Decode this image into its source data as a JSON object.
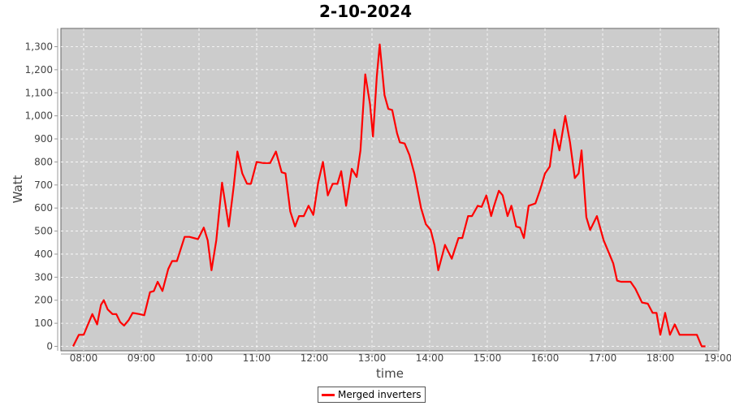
{
  "chart_data": {
    "type": "line",
    "title": "2-10-2024",
    "xlabel": "time",
    "ylabel": "Watt",
    "xlim": [
      "07:45",
      "19:05"
    ],
    "ylim": [
      0,
      1380
    ],
    "x_ticks": [
      "08:00",
      "09:00",
      "10:00",
      "11:00",
      "12:00",
      "13:00",
      "14:00",
      "15:00",
      "16:00",
      "17:00",
      "18:00",
      "19:00"
    ],
    "y_ticks": [
      "0",
      "100",
      "200",
      "300",
      "400",
      "500",
      "600",
      "700",
      "800",
      "900",
      "1,000",
      "1,100",
      "1,200",
      "1,300"
    ],
    "grid": true,
    "legend_position": "bottom",
    "colors": {
      "plot_background": "#cccccc",
      "series": "#ff0000",
      "grid": "#ffffff"
    },
    "series": [
      {
        "name": "Merged inverters",
        "points": [
          [
            "07:49",
            0
          ],
          [
            "07:55",
            50
          ],
          [
            "08:00",
            50
          ],
          [
            "08:04",
            90
          ],
          [
            "08:09",
            140
          ],
          [
            "08:14",
            95
          ],
          [
            "08:18",
            180
          ],
          [
            "08:21",
            200
          ],
          [
            "08:25",
            160
          ],
          [
            "08:30",
            140
          ],
          [
            "08:34",
            140
          ],
          [
            "08:38",
            105
          ],
          [
            "08:42",
            90
          ],
          [
            "08:47",
            115
          ],
          [
            "08:51",
            145
          ],
          [
            "08:58",
            140
          ],
          [
            "09:03",
            135
          ],
          [
            "09:09",
            235
          ],
          [
            "09:13",
            240
          ],
          [
            "09:17",
            280
          ],
          [
            "09:22",
            240
          ],
          [
            "09:28",
            335
          ],
          [
            "09:32",
            370
          ],
          [
            "09:37",
            370
          ],
          [
            "09:45",
            475
          ],
          [
            "09:50",
            475
          ],
          [
            "09:59",
            465
          ],
          [
            "10:05",
            515
          ],
          [
            "10:09",
            460
          ],
          [
            "10:13",
            330
          ],
          [
            "10:18",
            460
          ],
          [
            "10:24",
            710
          ],
          [
            "10:31",
            520
          ],
          [
            "10:36",
            690
          ],
          [
            "10:40",
            845
          ],
          [
            "10:45",
            750
          ],
          [
            "10:50",
            705
          ],
          [
            "10:54",
            705
          ],
          [
            "11:00",
            800
          ],
          [
            "11:07",
            795
          ],
          [
            "11:14",
            795
          ],
          [
            "11:20",
            845
          ],
          [
            "11:26",
            755
          ],
          [
            "11:30",
            750
          ],
          [
            "11:35",
            585
          ],
          [
            "11:40",
            520
          ],
          [
            "11:44",
            565
          ],
          [
            "11:49",
            565
          ],
          [
            "11:54",
            610
          ],
          [
            "11:59",
            570
          ],
          [
            "12:04",
            710
          ],
          [
            "12:09",
            800
          ],
          [
            "12:14",
            655
          ],
          [
            "12:19",
            705
          ],
          [
            "12:24",
            705
          ],
          [
            "12:28",
            760
          ],
          [
            "12:33",
            610
          ],
          [
            "12:39",
            770
          ],
          [
            "12:44",
            735
          ],
          [
            "12:48",
            850
          ],
          [
            "12:53",
            1180
          ],
          [
            "12:58",
            1050
          ],
          [
            "13:01",
            910
          ],
          [
            "13:05",
            1170
          ],
          [
            "13:08",
            1310
          ],
          [
            "13:13",
            1090
          ],
          [
            "13:17",
            1030
          ],
          [
            "13:21",
            1025
          ],
          [
            "13:26",
            925
          ],
          [
            "13:29",
            885
          ],
          [
            "13:34",
            880
          ],
          [
            "13:39",
            830
          ],
          [
            "13:44",
            750
          ],
          [
            "13:51",
            600
          ],
          [
            "13:56",
            530
          ],
          [
            "14:01",
            505
          ],
          [
            "14:05",
            440
          ],
          [
            "14:09",
            330
          ],
          [
            "14:16",
            440
          ],
          [
            "14:23",
            380
          ],
          [
            "14:30",
            470
          ],
          [
            "14:34",
            470
          ],
          [
            "14:40",
            565
          ],
          [
            "14:44",
            565
          ],
          [
            "14:50",
            610
          ],
          [
            "14:54",
            605
          ],
          [
            "14:59",
            655
          ],
          [
            "15:04",
            565
          ],
          [
            "15:07",
            610
          ],
          [
            "15:12",
            675
          ],
          [
            "15:16",
            655
          ],
          [
            "15:21",
            565
          ],
          [
            "15:25",
            610
          ],
          [
            "15:30",
            520
          ],
          [
            "15:34",
            515
          ],
          [
            "15:38",
            470
          ],
          [
            "15:43",
            610
          ],
          [
            "15:50",
            620
          ],
          [
            "15:55",
            680
          ],
          [
            "16:00",
            750
          ],
          [
            "16:05",
            780
          ],
          [
            "16:10",
            940
          ],
          [
            "16:15",
            850
          ],
          [
            "16:21",
            1000
          ],
          [
            "16:26",
            885
          ],
          [
            "16:31",
            730
          ],
          [
            "16:35",
            750
          ],
          [
            "16:38",
            850
          ],
          [
            "16:43",
            560
          ],
          [
            "16:47",
            505
          ],
          [
            "16:54",
            565
          ],
          [
            "17:01",
            460
          ],
          [
            "17:06",
            410
          ],
          [
            "17:11",
            360
          ],
          [
            "17:15",
            285
          ],
          [
            "17:19",
            280
          ],
          [
            "17:29",
            280
          ],
          [
            "17:34",
            250
          ],
          [
            "17:41",
            190
          ],
          [
            "17:47",
            185
          ],
          [
            "17:52",
            145
          ],
          [
            "17:56",
            145
          ],
          [
            "18:00",
            50
          ],
          [
            "18:05",
            145
          ],
          [
            "18:10",
            50
          ],
          [
            "18:15",
            95
          ],
          [
            "18:20",
            50
          ],
          [
            "18:25",
            50
          ],
          [
            "18:33",
            50
          ],
          [
            "18:38",
            50
          ],
          [
            "18:43",
            0
          ],
          [
            "18:47",
            0
          ]
        ]
      }
    ]
  }
}
